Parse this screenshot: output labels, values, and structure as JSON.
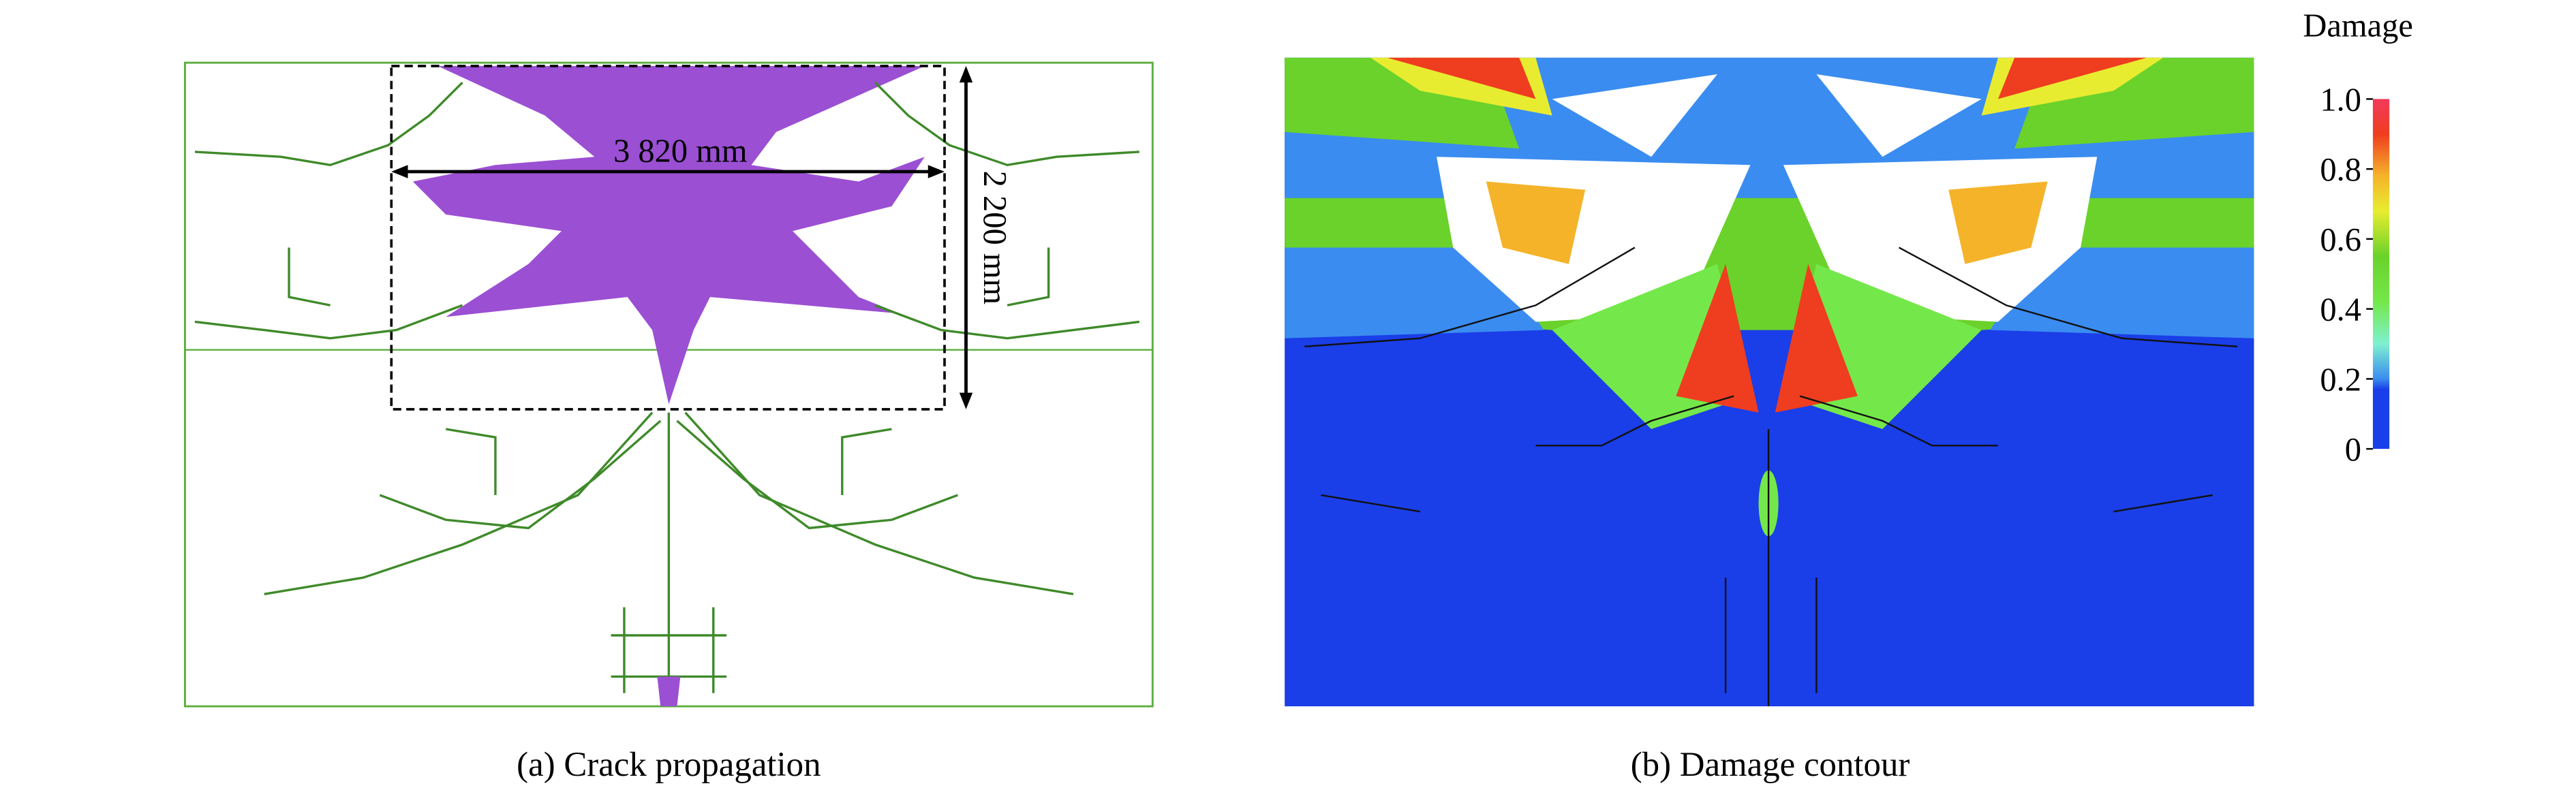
{
  "panels": [
    {
      "caption": "(a) Crack propagation",
      "dimensions": {
        "width": "3 820 mm",
        "height": "2 200 mm"
      }
    },
    {
      "caption": "(b) Damage contour"
    }
  ],
  "colorbar": {
    "title": "Damage",
    "ticks": [
      {
        "value": 1,
        "label": "1.0"
      },
      {
        "value": 0.8,
        "label": "0.8"
      },
      {
        "value": 0.6,
        "label": "0.6"
      },
      {
        "value": 0.4,
        "label": "0.4"
      },
      {
        "value": 0.2,
        "label": "0.2"
      },
      0
    ]
  }
}
